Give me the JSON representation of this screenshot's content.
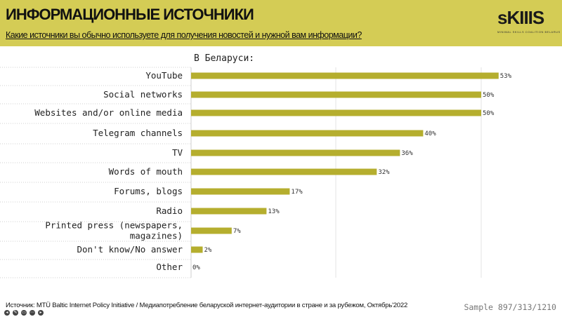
{
  "header": {
    "title": "ИНФОРМАЦИОННЫЕ ИСТОЧНИКИ",
    "question": "Какие источники вы обычно используете для получения новостей и нужной вам информации?",
    "logo": "sKIIIS",
    "logo_sub": "MINIMAL SKILLS COALITION BELARUS"
  },
  "colors": {
    "header_bg": "#d4cc55",
    "bar": "#b5ae2e"
  },
  "chart_data": {
    "type": "bar",
    "orientation": "horizontal",
    "title": "В Беларуси:",
    "categories": [
      "YouTube",
      "Social networks",
      "Websites and/or online media",
      "Telegram channels",
      "TV",
      "Words of mouth",
      "Forums, blogs",
      "Radio",
      "Printed press (newspapers, magazines)",
      "Don't know/No answer",
      "Other"
    ],
    "category_lines": [
      [
        "YouTube"
      ],
      [
        "Social networks"
      ],
      [
        "Websites and/or online media"
      ],
      [
        "Telegram channels"
      ],
      [
        "TV"
      ],
      [
        "Words of mouth"
      ],
      [
        "Forums, blogs"
      ],
      [
        "Radio"
      ],
      [
        "Printed press (newspapers,",
        "magazines)"
      ],
      [
        "Don't know/No answer"
      ],
      [
        "Other"
      ]
    ],
    "values": [
      53,
      50,
      50,
      40,
      36,
      32,
      17,
      13,
      7,
      2,
      0
    ],
    "value_labels": [
      "53%",
      "50%",
      "50%",
      "40%",
      "36%",
      "32%",
      "17%",
      "13%",
      "7%",
      "2%",
      "0%"
    ],
    "xlim": [
      0,
      50
    ],
    "grid": true
  },
  "footer": {
    "source": "Источник: MTÜ Baltic Internet Policy Initiative / Медиапотребление беларуской интернет-аудитории в стране и за рубежом,  Октябрь'2022",
    "sample": "Sample 897/313/1210"
  },
  "toolbar": {
    "items": [
      "◂",
      "✎",
      "▭",
      "⋯",
      "▸"
    ]
  }
}
